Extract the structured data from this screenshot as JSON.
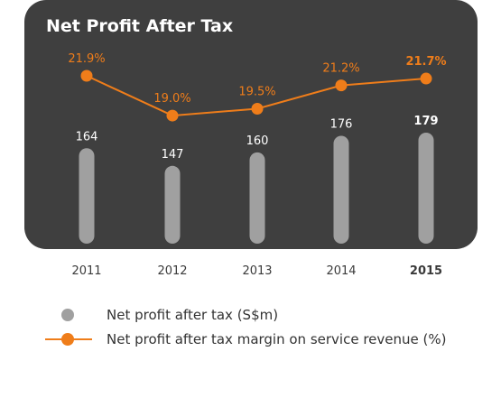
{
  "chart_data": {
    "type": "bar",
    "title": "Net Profit After Tax",
    "categories": [
      "2011",
      "2012",
      "2013",
      "2014",
      "2015"
    ],
    "highlight_category": "2015",
    "series": [
      {
        "name": "Net profit after tax (S$m)",
        "kind": "bar",
        "color": "#a0a0a0",
        "values": [
          164,
          147,
          160,
          176,
          179
        ],
        "labels": [
          "164",
          "147",
          "160",
          "176",
          "179"
        ]
      },
      {
        "name": "Net profit after tax margin on service revenue (%)",
        "kind": "line",
        "color": "#ef7d1a",
        "values": [
          21.9,
          19.0,
          19.5,
          21.2,
          21.7
        ],
        "labels": [
          "21.9%",
          "19.0%",
          "19.5%",
          "21.2%",
          "21.7%"
        ]
      }
    ],
    "legend_position": "bottom",
    "grid": false
  },
  "colors": {
    "panel_background": "#3f3f3f",
    "bar": "#a0a0a0",
    "line": "#ef7d1a"
  }
}
